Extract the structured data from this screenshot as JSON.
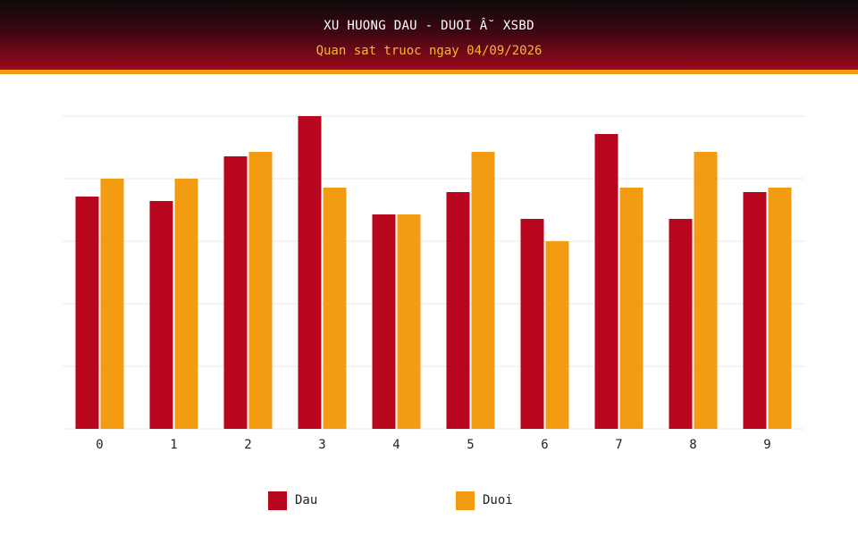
{
  "header": {
    "title": "XU HUONG DAU - DUOI Â˘ XSBD",
    "subtitle": "Quan sat truoc ngay 04/09/2026"
  },
  "colors": {
    "dau": "#b8061f",
    "duoi": "#f39c12",
    "grid": "#e8e8e8"
  },
  "chart_data": {
    "type": "bar",
    "title": "XU HUONG DAU - DUOI Â˘ XSBD",
    "subtitle": "Quan sat truoc ngay 04/09/2026",
    "categories": [
      "0",
      "1",
      "2",
      "3",
      "4",
      "5",
      "6",
      "7",
      "8",
      "9"
    ],
    "series": [
      {
        "name": "Dau",
        "values": [
          26,
          25.5,
          30.5,
          35,
          24,
          26.5,
          23.5,
          33,
          23.5,
          26.5
        ]
      },
      {
        "name": "Duoi",
        "values": [
          28,
          28,
          31,
          27,
          24,
          31,
          21,
          27,
          31,
          27
        ]
      }
    ],
    "ylim": [
      0,
      35
    ],
    "grid": true,
    "legend": "bottom",
    "xlabel": "",
    "ylabel": ""
  }
}
